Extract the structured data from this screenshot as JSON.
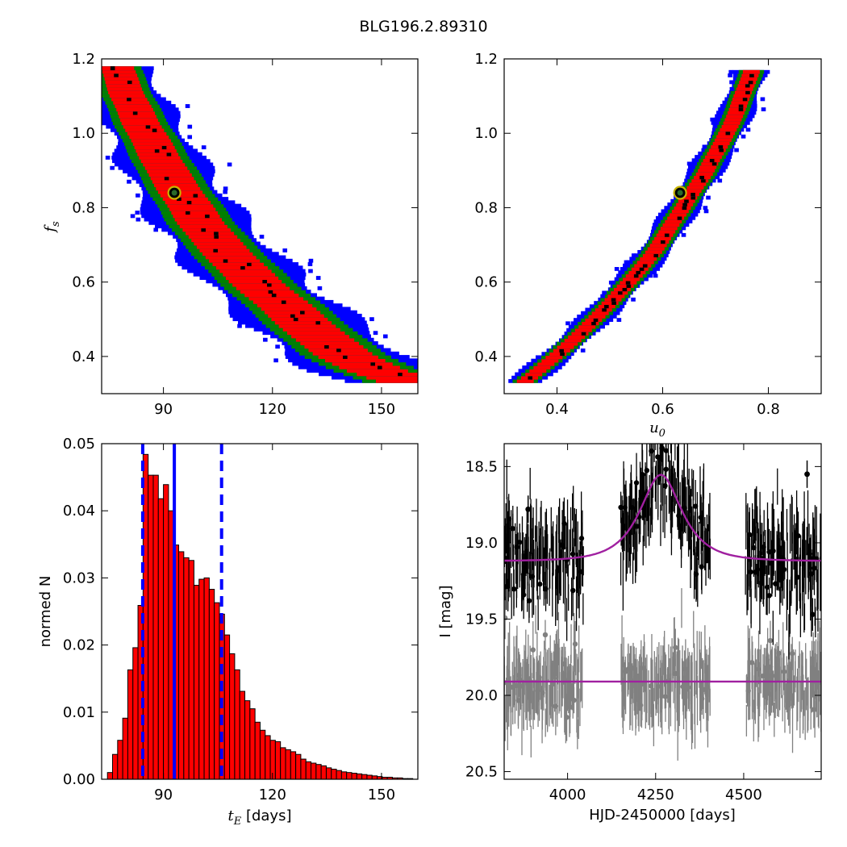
{
  "figure_title": "BLG196.2.89310",
  "chart_data": [
    {
      "type": "heatmap",
      "panel": "top-left",
      "xlabel": "",
      "ylabel": "f_s",
      "xlim": [
        73,
        160
      ],
      "ylim": [
        0.3,
        1.2
      ],
      "xticks": [
        90,
        120,
        150
      ],
      "yticks": [
        0.4,
        0.6,
        0.8,
        1.0,
        1.2
      ],
      "ytick_labels": [
        "0.4",
        "0.6",
        "0.8",
        "1.0",
        "1.2"
      ],
      "colors": {
        "outer": "#0000ff",
        "middle": "#008000",
        "inner": "#ff0000",
        "peak": "#000000"
      },
      "ridge": {
        "x": [
          77,
          80,
          84,
          88,
          92,
          96,
          100,
          105,
          110,
          115,
          120,
          126,
          133,
          140,
          148,
          157
        ],
        "y": [
          1.18,
          1.1,
          1.02,
          0.95,
          0.88,
          0.82,
          0.76,
          0.7,
          0.65,
          0.6,
          0.56,
          0.51,
          0.45,
          0.4,
          0.36,
          0.33
        ],
        "half_widths_x": [
          3.5,
          4.5,
          6.5,
          9.0
        ]
      },
      "best_fit": {
        "x": 93,
        "y": 0.84
      }
    },
    {
      "type": "heatmap",
      "panel": "top-right",
      "xlabel": "u_0",
      "ylabel": "",
      "xlim": [
        0.3,
        0.9
      ],
      "ylim": [
        0.3,
        1.2
      ],
      "xticks": [
        0.4,
        0.6,
        0.8
      ],
      "yticks": [
        0.4,
        0.6,
        0.8,
        1.0,
        1.2
      ],
      "ytick_labels": [
        "0.4",
        "0.6",
        "0.8",
        "1.0",
        "1.2"
      ],
      "colors": {
        "outer": "#0000ff",
        "middle": "#008000",
        "inner": "#ff0000",
        "peak": "#000000"
      },
      "ridge": {
        "x": [
          0.34,
          0.4,
          0.46,
          0.52,
          0.58,
          0.63,
          0.68,
          0.73,
          0.77
        ],
        "y": [
          0.33,
          0.4,
          0.48,
          0.57,
          0.67,
          0.78,
          0.89,
          1.02,
          1.17
        ],
        "half_widths_x": [
          0.008,
          0.016,
          0.024,
          0.032
        ]
      },
      "best_fit": {
        "x": 0.633,
        "y": 0.84
      }
    },
    {
      "type": "bar",
      "panel": "bottom-left",
      "xlabel": "t_E [days]",
      "ylabel": "normed N",
      "xlim": [
        73,
        160
      ],
      "ylim": [
        0,
        0.05
      ],
      "xticks": [
        90,
        120,
        150
      ],
      "yticks": [
        0.0,
        0.01,
        0.02,
        0.03,
        0.04,
        0.05
      ],
      "ytick_labels": [
        "0.00",
        "0.01",
        "0.02",
        "0.03",
        "0.04",
        "0.05"
      ],
      "bar_color": "#ff0000",
      "bin_start": 74.6,
      "bin_width": 1.4,
      "values": [
        0.001,
        0.0037,
        0.0058,
        0.0091,
        0.0163,
        0.0196,
        0.0259,
        0.0484,
        0.0453,
        0.0453,
        0.0418,
        0.0439,
        0.04,
        0.0349,
        0.0339,
        0.033,
        0.0326,
        0.0289,
        0.0298,
        0.03,
        0.0283,
        0.0263,
        0.0246,
        0.0215,
        0.0187,
        0.0163,
        0.0131,
        0.0117,
        0.0105,
        0.0085,
        0.0073,
        0.0065,
        0.0058,
        0.0056,
        0.0047,
        0.0044,
        0.0041,
        0.0037,
        0.003,
        0.0026,
        0.0024,
        0.0022,
        0.002,
        0.0017,
        0.0015,
        0.0013,
        0.0011,
        0.001,
        0.0009,
        0.0008,
        0.0007,
        0.0006,
        0.0005,
        0.0004,
        0.0003,
        0.0003,
        0.0002,
        0.0002,
        0.0001,
        0.0001
      ],
      "median_line": 93,
      "interval_lines": [
        84.3,
        106
      ],
      "line_color": "#0000ff"
    },
    {
      "type": "scatter",
      "panel": "bottom-right",
      "xlabel": "HJD-2450000 [days]",
      "ylabel": "I [mag]",
      "xlim": [
        3820,
        4720
      ],
      "ylim": [
        20.55,
        18.35
      ],
      "y_inverted": true,
      "xticks": [
        4000,
        4250,
        4500
      ],
      "yticks": [
        18.5,
        19.0,
        19.5,
        20.0,
        20.5
      ],
      "ytick_labels": [
        "18.5",
        "19.0",
        "19.5",
        "20.0",
        "20.5"
      ],
      "observing_seasons": [
        [
          3820,
          4045
        ],
        [
          4150,
          4405
        ],
        [
          4505,
          4720
        ]
      ],
      "series": [
        {
          "color": "#000000",
          "baseline_mag": 19.12,
          "scatter_mag": 0.16,
          "errorbar_mag": 0.14,
          "peak_time": 4265,
          "tE": 93,
          "u0": 0.63,
          "fs": 0.84,
          "model_color": "#a020a0"
        },
        {
          "color": "#808080",
          "baseline_mag": 19.91,
          "scatter_mag": 0.12,
          "errorbar_mag": 0.14,
          "model_color": "#a020a0"
        }
      ],
      "outliers": [
        {
          "x": 3888,
          "y": 18.78
        },
        {
          "x": 4680,
          "y": 18.55
        },
        {
          "x": 4268,
          "y": 18.38
        }
      ]
    }
  ]
}
